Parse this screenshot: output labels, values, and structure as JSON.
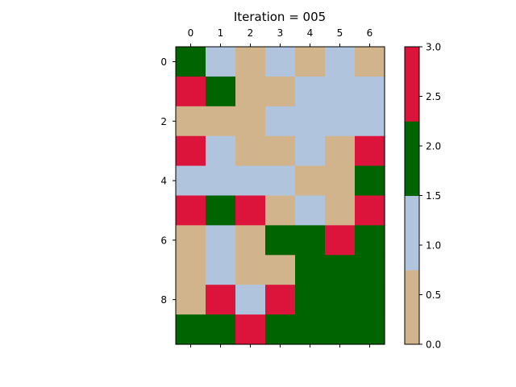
{
  "chart_data": {
    "type": "heatmap",
    "title": "Iteration = 005",
    "x_ticks": [
      "0",
      "1",
      "2",
      "3",
      "4",
      "5",
      "6"
    ],
    "y_ticks": [
      "0",
      "2",
      "4",
      "6",
      "8"
    ],
    "y_tick_values": [
      0,
      2,
      4,
      6,
      8
    ],
    "grid": [
      [
        2,
        1,
        0,
        1,
        0,
        1,
        0
      ],
      [
        3,
        2,
        0,
        0,
        1,
        1,
        1
      ],
      [
        0,
        0,
        0,
        1,
        1,
        1,
        1
      ],
      [
        3,
        1,
        0,
        0,
        1,
        0,
        3
      ],
      [
        1,
        1,
        1,
        1,
        0,
        0,
        2
      ],
      [
        3,
        2,
        3,
        0,
        1,
        0,
        3
      ],
      [
        0,
        1,
        0,
        2,
        2,
        3,
        2
      ],
      [
        0,
        1,
        0,
        0,
        2,
        2,
        2
      ],
      [
        0,
        3,
        1,
        3,
        2,
        2,
        2
      ],
      [
        2,
        2,
        3,
        2,
        2,
        2,
        2
      ]
    ],
    "colormap": {
      "colors": [
        "#d2b48c",
        "#b0c4de",
        "#006400",
        "#dc143c"
      ],
      "range": [
        0,
        3
      ]
    },
    "colorbar": {
      "ticks": [
        "0.0",
        "0.5",
        "1.0",
        "1.5",
        "2.0",
        "2.5",
        "3.0"
      ],
      "tick_values": [
        0,
        0.5,
        1,
        1.5,
        2,
        2.5,
        3
      ]
    },
    "xlabel": "",
    "ylabel": "",
    "grid_lines": false
  }
}
